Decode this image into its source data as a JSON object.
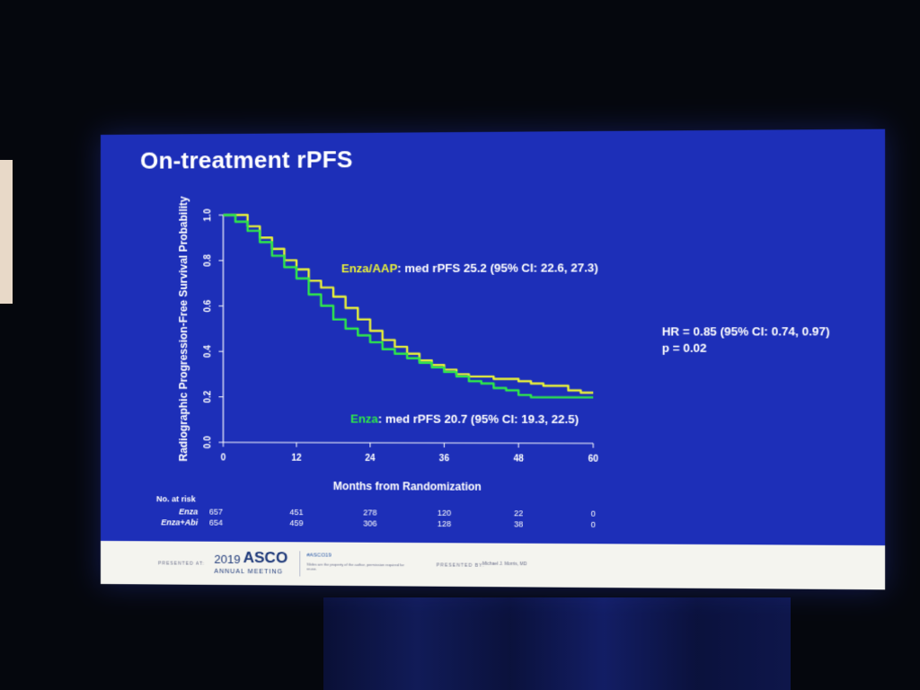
{
  "slide": {
    "title": "On-treatment rPFS"
  },
  "chart_data": {
    "type": "line",
    "title": "On-treatment rPFS",
    "xlabel": "Months from Randomization",
    "ylabel": "Radiographic Progression-Free Survival Probability",
    "xlim": [
      0,
      60
    ],
    "ylim": [
      0,
      1.0
    ],
    "x_ticks": [
      "0",
      "12",
      "24",
      "36",
      "48",
      "60"
    ],
    "y_ticks": [
      "0.0",
      "0.2",
      "0.4",
      "0.6",
      "0.8",
      "1.0"
    ],
    "series": [
      {
        "name": "Enza/AAP",
        "color": "#e8f03a",
        "x": [
          0,
          2,
          4,
          6,
          8,
          10,
          12,
          14,
          16,
          18,
          20,
          22,
          24,
          26,
          28,
          30,
          32,
          34,
          36,
          38,
          40,
          42,
          44,
          46,
          48,
          50,
          52,
          54,
          56,
          58,
          60
        ],
        "y": [
          1.0,
          1.0,
          0.95,
          0.9,
          0.85,
          0.8,
          0.76,
          0.71,
          0.68,
          0.64,
          0.59,
          0.54,
          0.49,
          0.45,
          0.42,
          0.39,
          0.36,
          0.34,
          0.32,
          0.3,
          0.29,
          0.29,
          0.28,
          0.28,
          0.27,
          0.26,
          0.25,
          0.25,
          0.23,
          0.22,
          0.22
        ]
      },
      {
        "name": "Enza",
        "color": "#2ee84a",
        "x": [
          0,
          2,
          4,
          6,
          8,
          10,
          12,
          14,
          16,
          18,
          20,
          22,
          24,
          26,
          28,
          30,
          32,
          34,
          36,
          38,
          40,
          42,
          44,
          46,
          48,
          50,
          52,
          54,
          56,
          58,
          60
        ],
        "y": [
          1.0,
          0.97,
          0.93,
          0.88,
          0.82,
          0.77,
          0.72,
          0.65,
          0.6,
          0.54,
          0.5,
          0.47,
          0.44,
          0.41,
          0.39,
          0.37,
          0.35,
          0.33,
          0.31,
          0.29,
          0.27,
          0.26,
          0.24,
          0.23,
          0.21,
          0.2,
          0.2,
          0.2,
          0.2,
          0.2,
          0.2
        ]
      }
    ],
    "annotations": {
      "enza_aap_label": "Enza/AAP",
      "enza_aap_text": ": med rPFS 25.2 (95% CI: 22.6, 27.3)",
      "enza_label": "Enza",
      "enza_text": ": med rPFS 20.7 (95% CI: 19.3, 22.5)",
      "hr_text": "HR = 0.85 (95% CI: 0.74, 0.97)",
      "p_text": "p = 0.02"
    },
    "risk_table": {
      "header": "No. at risk",
      "rows": [
        {
          "label": "Enza",
          "color": "#2ee84a",
          "values": [
            "657",
            "451",
            "278",
            "120",
            "22",
            "0"
          ]
        },
        {
          "label": "Enza+Abi",
          "color": "#e8f03a",
          "values": [
            "654",
            "459",
            "306",
            "128",
            "38",
            "0"
          ]
        }
      ]
    }
  },
  "footer": {
    "presented_at": "PRESENTED AT:",
    "year": "2019",
    "brand": "ASCO",
    "meeting": "ANNUAL MEETING",
    "hashtag": "#ASCO19",
    "disclaimer": "Slides are the property of the author, permission required for reuse.",
    "presented_by": "PRESENTED BY:",
    "presenter": "Michael J. Morris, MD"
  }
}
